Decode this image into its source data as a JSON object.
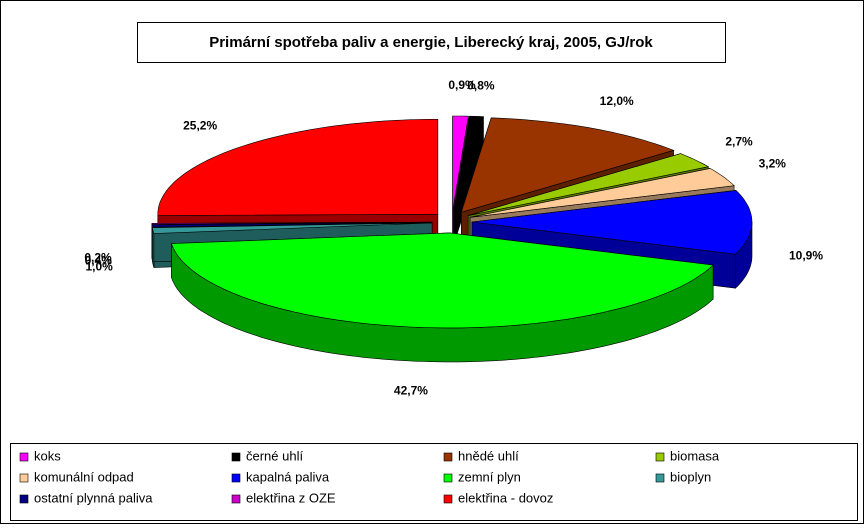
{
  "chart_data": {
    "type": "pie",
    "title": "Primární spotřeba paliv a energie, Liberecký kraj, 2005, GJ/rok",
    "categories": [
      "koks",
      "černé uhlí",
      "hnědé uhlí",
      "biomasa",
      "komunální odpad",
      "kapalná paliva",
      "zemní plyn",
      "bioplyn",
      "ostatní plynná paliva",
      "elektřina z OZE",
      "elektřina - dovoz"
    ],
    "values": [
      0.9,
      0.8,
      12.0,
      2.7,
      3.2,
      10.9,
      42.7,
      1.0,
      0.4,
      0.2,
      25.2
    ],
    "value_labels": [
      "0,9%",
      "0,8%",
      "12,0%",
      "2,7%",
      "3,2%",
      "10,9%",
      "42,7%",
      "1,0%",
      "0,4%",
      "0,2%",
      "25,2%"
    ],
    "colors": [
      "#ff00ff",
      "#000000",
      "#993300",
      "#99cc00",
      "#ffcc99",
      "#0000ff",
      "#00ff00",
      "#339999",
      "#000080",
      "#cc00cc",
      "#ff0000"
    ]
  }
}
